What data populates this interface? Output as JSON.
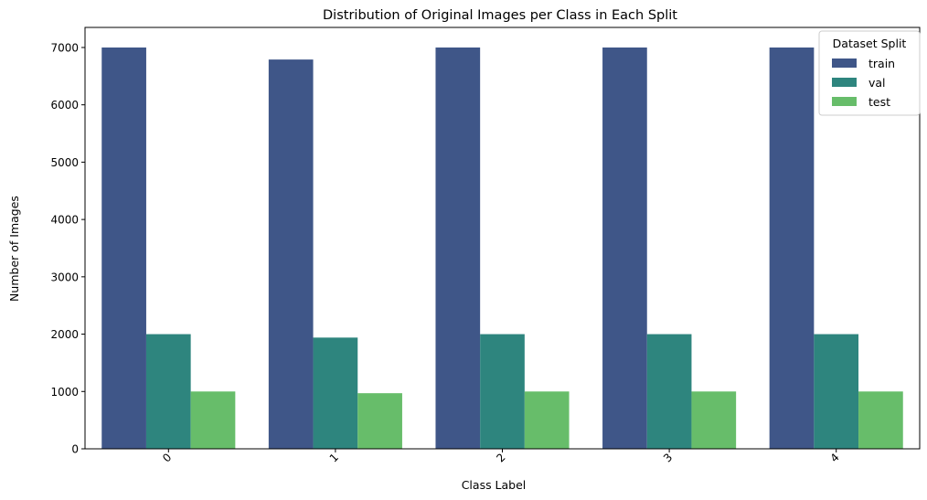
{
  "chart_data": {
    "type": "bar",
    "title": "Distribution of Original Images per Class in Each Split",
    "xlabel": "Class Label",
    "ylabel": "Number of Images",
    "categories": [
      "0",
      "1",
      "2",
      "3",
      "4"
    ],
    "series": [
      {
        "name": "train",
        "color": "#3f5688",
        "values": [
          7000,
          6790,
          7000,
          7000,
          7000
        ]
      },
      {
        "name": "val",
        "color": "#2e857e",
        "values": [
          2000,
          1940,
          2000,
          2000,
          2000
        ]
      },
      {
        "name": "test",
        "color": "#67bd6a",
        "values": [
          1000,
          970,
          1000,
          1000,
          1000
        ]
      }
    ],
    "ylim": [
      0,
      7350
    ],
    "yticks": [
      0,
      1000,
      2000,
      3000,
      4000,
      5000,
      6000,
      7000
    ],
    "xtick_rotation": 45,
    "legend": {
      "title": "Dataset Split",
      "position": "top-right"
    },
    "grid": false
  }
}
